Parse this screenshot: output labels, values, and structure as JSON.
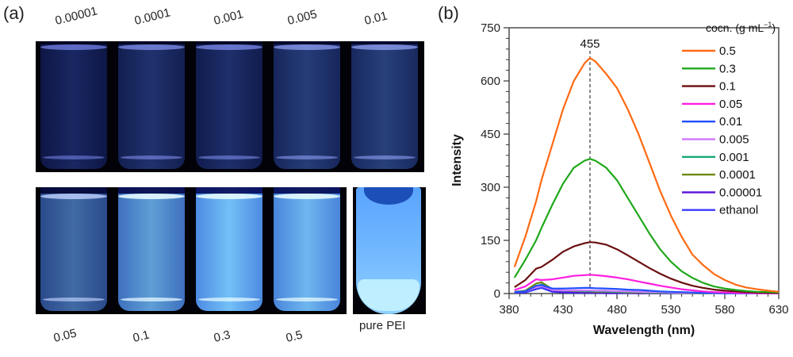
{
  "panel_a": {
    "label": "(a)",
    "top_row": {
      "labels": [
        "0.00001",
        "0.0001",
        "0.001",
        "0.005",
        "0.01"
      ],
      "glow": [
        0.05,
        0.12,
        0.1,
        0.18,
        0.2
      ]
    },
    "bottom_row": {
      "labels": [
        "0.05",
        "0.1",
        "0.3",
        "0.5"
      ],
      "glow": [
        0.45,
        0.75,
        0.95,
        0.9
      ]
    },
    "pure_label": "pure PEI"
  },
  "colors": {
    "0.5": "#ff6a13",
    "0.3": "#1fa81a",
    "0.1": "#6a0f0f",
    "0.05": "#ff1ee0",
    "0.01": "#1f4fff",
    "0.005": "#d27cff",
    "0.001": "#17a67a",
    "0.0001": "#6e8a10",
    "0.00001": "#5a10d8",
    "ethanol": "#3a3aff"
  },
  "chart_data": {
    "type": "line",
    "panel_label": "(b)",
    "title": "",
    "xlabel": "Wavelength (nm)",
    "ylabel": "Intensity",
    "xlim": [
      380,
      630
    ],
    "ylim": [
      0,
      750
    ],
    "xticks": [
      "380",
      "430",
      "480",
      "530",
      "580",
      "630"
    ],
    "yticks": [
      "0",
      "150",
      "300",
      "450",
      "600",
      "750"
    ],
    "grid": false,
    "legend_title": "cocn. (g mL",
    "legend_title_sup": "−1",
    "legend_title_end": ")",
    "legend_position": "top-right",
    "annotation": {
      "text": "455",
      "x": 455
    },
    "x": [
      385,
      395,
      405,
      410,
      420,
      430,
      440,
      450,
      455,
      460,
      470,
      480,
      490,
      500,
      510,
      520,
      530,
      540,
      550,
      560,
      570,
      580,
      590,
      600,
      610,
      620,
      630
    ],
    "series": [
      {
        "name": "0.5",
        "values": [
          75,
          160,
          260,
          320,
          420,
          520,
          600,
          650,
          665,
          655,
          620,
          580,
          520,
          450,
          370,
          290,
          220,
          160,
          110,
          80,
          55,
          38,
          25,
          17,
          12,
          8,
          5
        ]
      },
      {
        "name": "0.3",
        "values": [
          45,
          95,
          150,
          185,
          250,
          310,
          355,
          375,
          380,
          375,
          355,
          320,
          270,
          220,
          170,
          125,
          90,
          63,
          44,
          30,
          20,
          14,
          10,
          7,
          5,
          4,
          3
        ]
      },
      {
        "name": "0.1",
        "values": [
          18,
          38,
          70,
          75,
          95,
          118,
          133,
          142,
          145,
          144,
          138,
          125,
          108,
          90,
          72,
          56,
          42,
          31,
          22,
          16,
          11,
          8,
          6,
          4,
          3,
          2,
          2
        ]
      },
      {
        "name": "0.05",
        "values": [
          10,
          20,
          40,
          38,
          40,
          45,
          50,
          52,
          53,
          52,
          49,
          45,
          40,
          34,
          28,
          22,
          17,
          12,
          9,
          6,
          4,
          3,
          2,
          2,
          1,
          1,
          1
        ]
      },
      {
        "name": "0.01",
        "values": [
          4,
          6,
          22,
          24,
          14,
          14,
          15,
          16,
          16,
          15,
          14,
          13,
          11,
          10,
          8,
          6,
          5,
          4,
          3,
          2,
          2,
          1,
          1,
          1,
          1,
          1,
          1
        ]
      },
      {
        "name": "0.005",
        "values": [
          4,
          6,
          18,
          22,
          10,
          9,
          9,
          9,
          9,
          8,
          8,
          7,
          6,
          5,
          4,
          4,
          3,
          2,
          2,
          2,
          1,
          1,
          1,
          1,
          1,
          1,
          1
        ]
      },
      {
        "name": "0.001",
        "values": [
          4,
          6,
          20,
          26,
          10,
          8,
          8,
          7,
          7,
          7,
          6,
          5,
          5,
          4,
          3,
          3,
          2,
          2,
          2,
          1,
          1,
          1,
          1,
          1,
          1,
          1,
          1
        ]
      },
      {
        "name": "0.0001",
        "values": [
          5,
          8,
          28,
          32,
          12,
          9,
          7,
          6,
          6,
          5,
          5,
          4,
          3,
          3,
          2,
          2,
          2,
          1,
          1,
          1,
          1,
          1,
          1,
          1,
          1,
          1,
          1
        ]
      },
      {
        "name": "0.00001",
        "values": [
          3,
          5,
          18,
          22,
          8,
          5,
          4,
          3,
          3,
          3,
          2,
          2,
          2,
          1,
          1,
          1,
          1,
          1,
          1,
          1,
          1,
          1,
          1,
          1,
          1,
          1,
          1
        ]
      },
      {
        "name": "ethanol",
        "values": [
          2,
          3,
          12,
          16,
          5,
          3,
          2,
          2,
          2,
          2,
          1,
          1,
          1,
          1,
          1,
          1,
          1,
          1,
          1,
          1,
          1,
          1,
          1,
          1,
          1,
          1,
          1
        ]
      }
    ]
  }
}
